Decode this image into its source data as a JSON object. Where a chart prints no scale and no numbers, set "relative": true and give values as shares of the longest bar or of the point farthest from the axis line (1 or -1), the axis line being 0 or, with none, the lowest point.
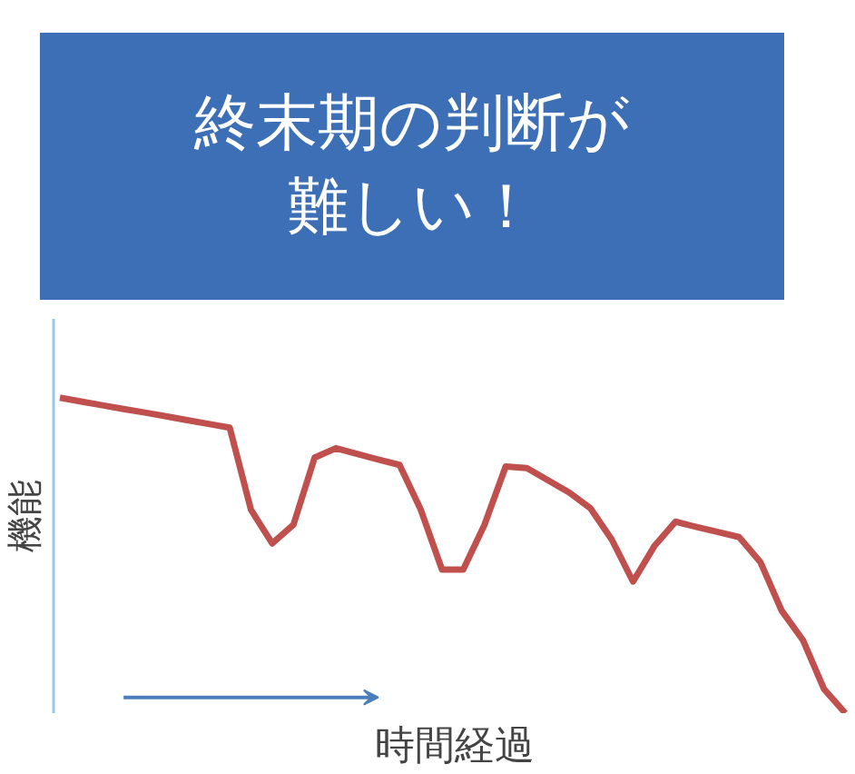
{
  "chart_data": {
    "type": "line",
    "title": "終末期の判断が難しい！",
    "xlabel": "時間経過",
    "ylabel": "機能",
    "relative": true,
    "categories": [
      null,
      null,
      null,
      null,
      null,
      null,
      null,
      null,
      null,
      null,
      null,
      null,
      null,
      null,
      null,
      null,
      null,
      null,
      null,
      null,
      null,
      null,
      null,
      null,
      null,
      null,
      null,
      null,
      null,
      null,
      null,
      null,
      null,
      null,
      null,
      null,
      null,
      null
    ],
    "series": [
      {
        "color": "#c0504d",
        "values": [
          1.0,
          0.988,
          0.976,
          0.964,
          0.953,
          0.941,
          0.929,
          0.917,
          0.905,
          0.645,
          0.538,
          0.597,
          0.81,
          0.84,
          0.822,
          0.804,
          0.787,
          0.645,
          0.455,
          0.455,
          0.597,
          0.782,
          0.777,
          0.738,
          0.699,
          0.649,
          0.55,
          0.417,
          0.529,
          0.607,
          0.59,
          0.574,
          0.558,
          0.479,
          0.325,
          0.232,
          0.076,
          0
        ]
      }
    ],
    "marker": "none",
    "line_style": "solid"
  }
}
